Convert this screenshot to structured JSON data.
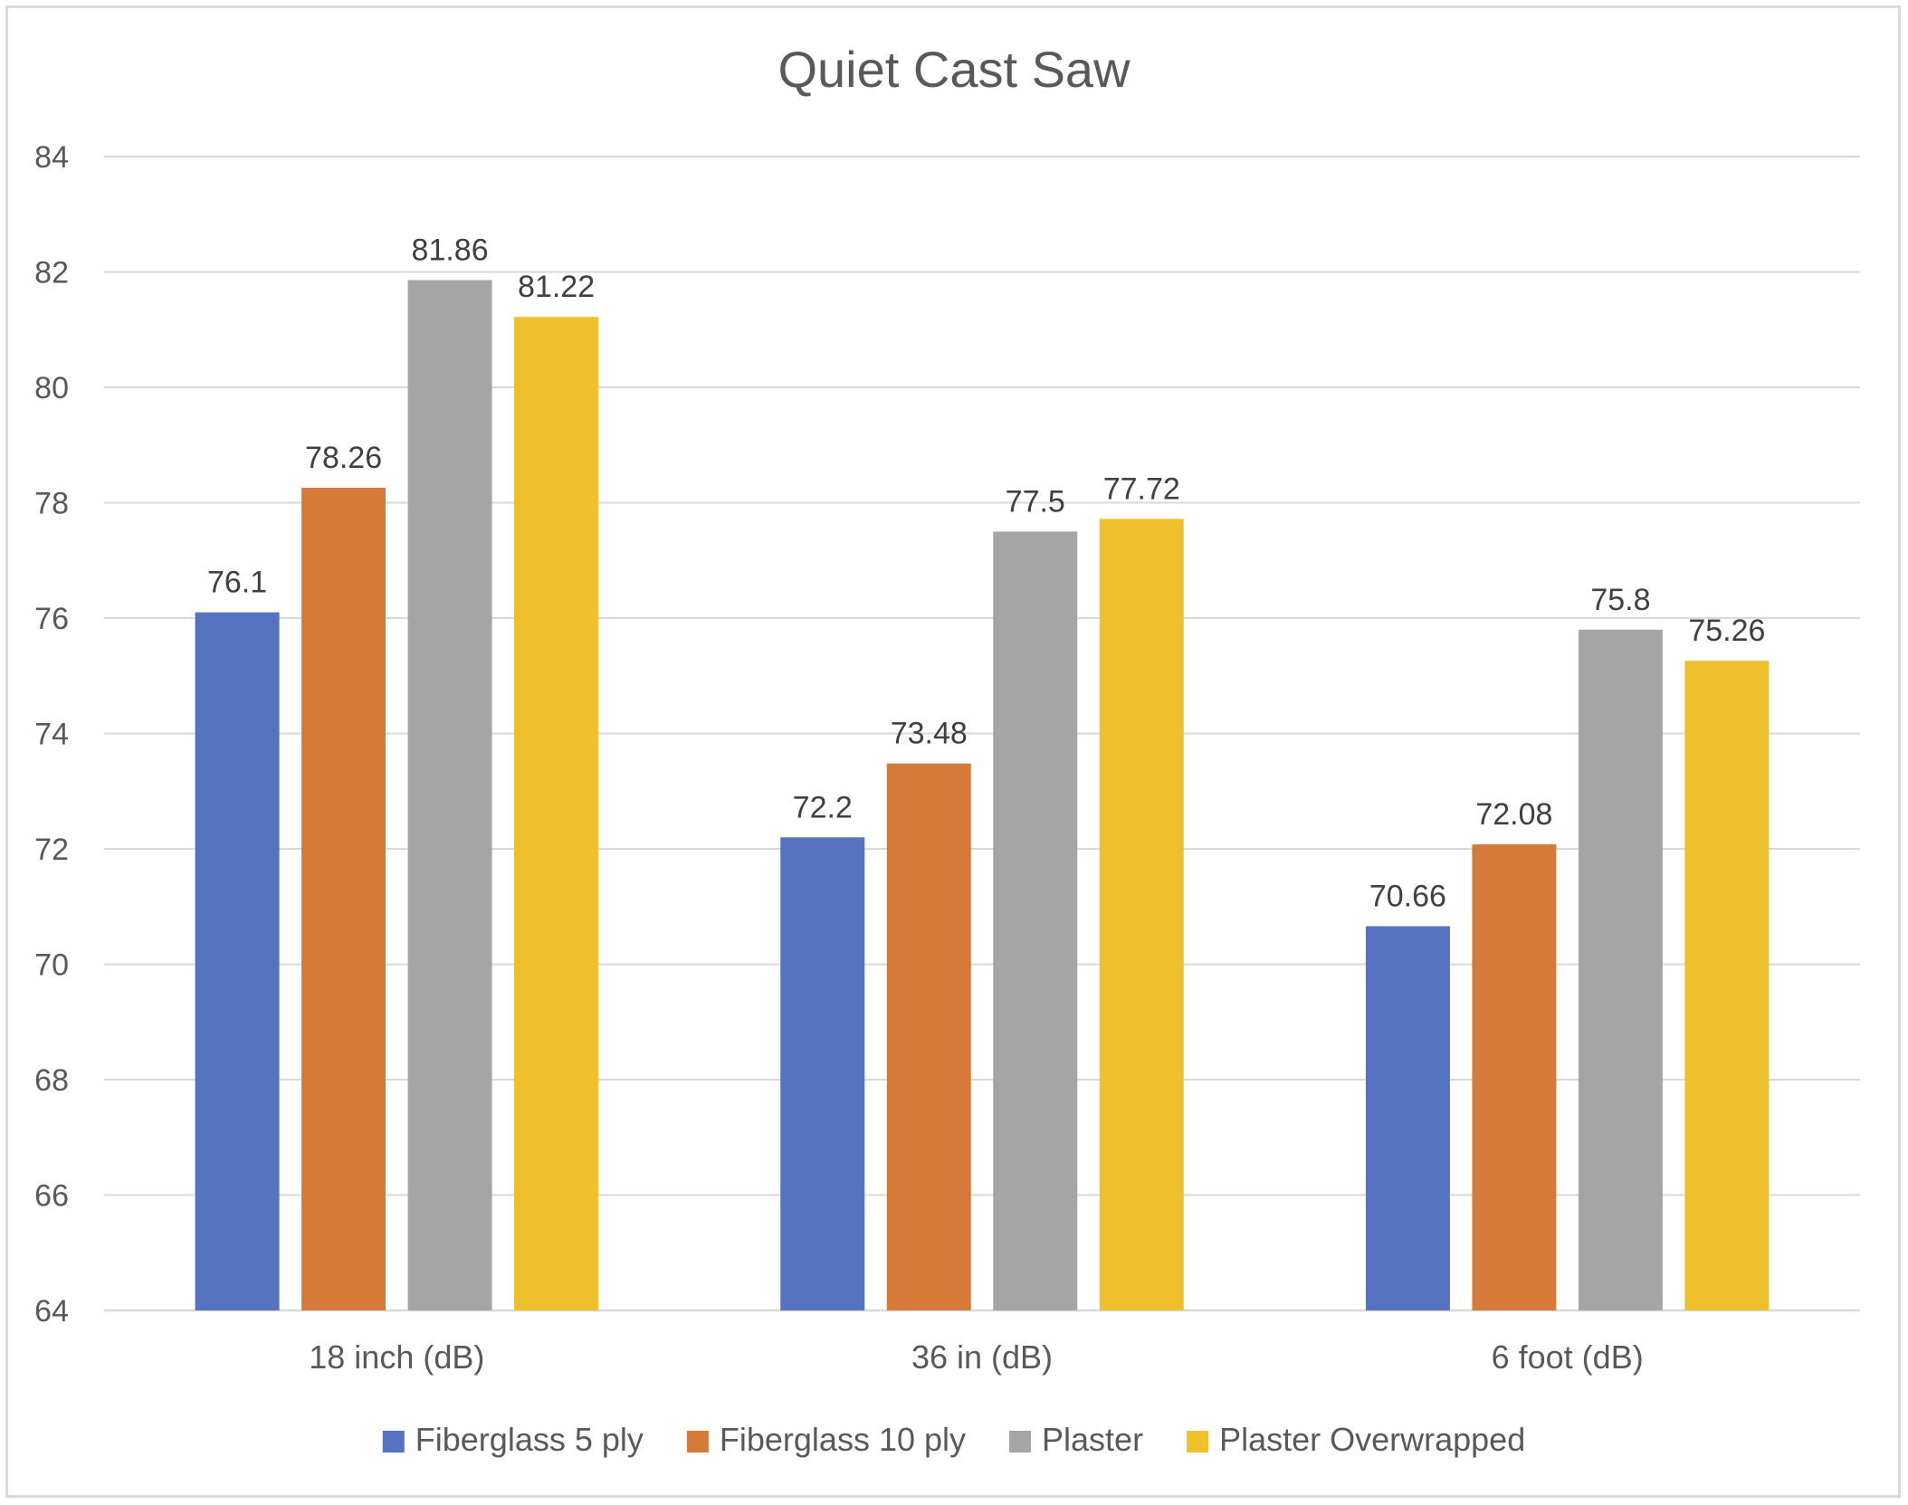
{
  "chart_data": {
    "type": "bar",
    "title": "Quiet Cast Saw",
    "xlabel": "",
    "ylabel": "",
    "categories": [
      "18 inch (dB)",
      "36 in (dB)",
      "6 foot (dB)"
    ],
    "series": [
      {
        "name": "Fiberglass 5 ply",
        "color": "#5573c1",
        "values": [
          76.1,
          72.2,
          70.66
        ],
        "labels": [
          "76.1",
          "72.2",
          "70.66"
        ]
      },
      {
        "name": "Fiberglass 10 ply",
        "color": "#d57a38",
        "values": [
          78.26,
          73.48,
          72.08
        ],
        "labels": [
          "78.26",
          "73.48",
          "72.08"
        ]
      },
      {
        "name": "Plaster",
        "color": "#a5a5a5",
        "values": [
          81.86,
          77.5,
          75.8
        ],
        "labels": [
          "81.86",
          "77.5",
          "75.8"
        ]
      },
      {
        "name": "Plaster Overwrapped",
        "color": "#eec02e",
        "values": [
          81.22,
          77.72,
          75.26
        ],
        "labels": [
          "81.22",
          "77.72",
          "75.26"
        ]
      }
    ],
    "ylim": [
      64,
      84
    ],
    "yticks": [
      "64",
      "66",
      "68",
      "70",
      "72",
      "74",
      "76",
      "78",
      "80",
      "82",
      "84"
    ],
    "grid": true,
    "legend_position": "bottom"
  }
}
